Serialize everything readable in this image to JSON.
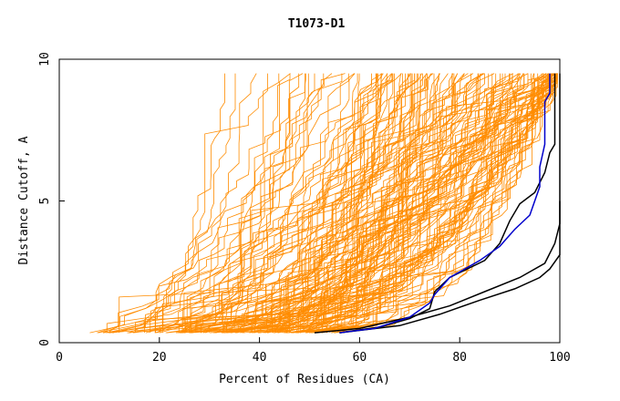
{
  "chart_data": {
    "type": "line",
    "title": "T1073-D1",
    "xlabel": "Percent of Residues (CA)",
    "ylabel": "Distance Cutoff, A",
    "xlim": [
      0,
      100
    ],
    "ylim": [
      0,
      10
    ],
    "x_ticks": [
      "0",
      "20",
      "40",
      "60",
      "80",
      "100"
    ],
    "y_ticks": [
      "0",
      "5",
      "10"
    ],
    "grid": false,
    "colors": {
      "models": "#ff8c00",
      "highlight_black": "#000000",
      "highlight_blue": "#0000cc"
    },
    "model_count": 160,
    "highlighted_series": [
      {
        "color": "black",
        "points": [
          [
            51,
            0.35
          ],
          [
            60,
            0.5
          ],
          [
            70,
            0.9
          ],
          [
            78,
            1.3
          ],
          [
            85,
            1.8
          ],
          [
            92,
            2.3
          ],
          [
            97,
            2.8
          ],
          [
            99,
            3.5
          ],
          [
            100,
            4.2
          ],
          [
            100,
            5
          ],
          [
            100,
            6
          ],
          [
            100,
            7
          ],
          [
            100,
            8
          ],
          [
            100,
            9.5
          ]
        ]
      },
      {
        "color": "black",
        "points": [
          [
            56,
            0.35
          ],
          [
            64,
            0.55
          ],
          [
            70,
            0.85
          ],
          [
            74,
            1.2
          ],
          [
            75,
            1.8
          ],
          [
            78,
            2.3
          ],
          [
            85,
            2.9
          ],
          [
            88,
            3.5
          ],
          [
            90,
            4.3
          ],
          [
            92,
            4.9
          ],
          [
            95,
            5.3
          ],
          [
            97,
            6
          ],
          [
            98,
            6.7
          ],
          [
            99,
            7
          ],
          [
            99,
            7.5
          ],
          [
            99,
            8.5
          ],
          [
            99,
            9.5
          ]
        ]
      },
      {
        "color": "black",
        "points": [
          [
            56,
            0.35
          ],
          [
            68,
            0.6
          ],
          [
            76,
            1.0
          ],
          [
            84,
            1.5
          ],
          [
            91,
            1.9
          ],
          [
            96,
            2.3
          ],
          [
            98,
            2.6
          ],
          [
            100,
            3.1
          ],
          [
            100,
            4
          ],
          [
            100,
            5
          ]
        ]
      },
      {
        "color": "blue",
        "points": [
          [
            56,
            0.35
          ],
          [
            63,
            0.5
          ],
          [
            70,
            0.9
          ],
          [
            74,
            1.4
          ],
          [
            75,
            1.7
          ],
          [
            77,
            2.1
          ],
          [
            78,
            2.3
          ],
          [
            80,
            2.5
          ],
          [
            84,
            2.9
          ],
          [
            88,
            3.4
          ],
          [
            91,
            4.0
          ],
          [
            94,
            4.5
          ],
          [
            95,
            5.0
          ],
          [
            96,
            5.5
          ],
          [
            96,
            6.2
          ],
          [
            97,
            7.0
          ],
          [
            97,
            7.8
          ],
          [
            97,
            8.5
          ],
          [
            98,
            8.8
          ],
          [
            98,
            9.5
          ]
        ]
      }
    ]
  }
}
